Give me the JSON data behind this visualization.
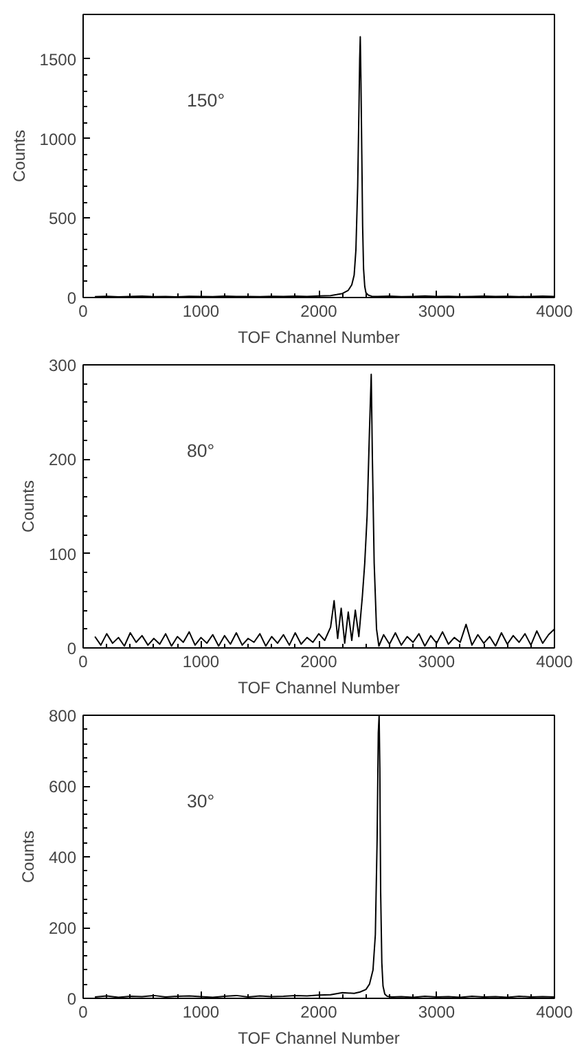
{
  "chart_data": [
    {
      "type": "line",
      "xlabel": "TOF Channel Number",
      "ylabel": "Counts",
      "annotations": [
        "150°"
      ],
      "xlim": [
        0,
        4000
      ],
      "xticks": [
        0,
        1000,
        2000,
        3000,
        4000
      ],
      "ylim": [
        0,
        1780
      ],
      "yticks": [
        0,
        500,
        1000,
        1500
      ],
      "line_style": "solid",
      "series": [
        {
          "color": "#000000",
          "x": [
            100,
            200,
            300,
            400,
            500,
            600,
            700,
            800,
            900,
            1000,
            1100,
            1200,
            1300,
            1400,
            1500,
            1600,
            1700,
            1800,
            1900,
            2000,
            2100,
            2150,
            2200,
            2250,
            2280,
            2300,
            2315,
            2330,
            2340,
            2347,
            2352,
            2358,
            2365,
            2372,
            2380,
            2390,
            2400,
            2420,
            2450,
            2500,
            2600,
            2700,
            2800,
            2900,
            3000,
            3100,
            3200,
            3300,
            3400,
            3500,
            3600,
            3700,
            3800,
            3900,
            4000
          ],
          "values": [
            5,
            8,
            4,
            6,
            9,
            5,
            7,
            4,
            8,
            6,
            5,
            9,
            6,
            7,
            5,
            8,
            6,
            9,
            7,
            10,
            12,
            18,
            25,
            45,
            80,
            140,
            300,
            700,
            1150,
            1500,
            1640,
            1350,
            900,
            450,
            180,
            70,
            30,
            15,
            8,
            6,
            9,
            5,
            7,
            10,
            6,
            8,
            5,
            7,
            9,
            6,
            8,
            5,
            7,
            9,
            6
          ]
        }
      ]
    },
    {
      "type": "line",
      "xlabel": "TOF Channel Number",
      "ylabel": "Counts",
      "annotations": [
        "80°"
      ],
      "xlim": [
        0,
        4000
      ],
      "xticks": [
        0,
        1000,
        2000,
        3000,
        4000
      ],
      "ylim": [
        0,
        300
      ],
      "yticks": [
        0,
        100,
        200,
        300
      ],
      "line_style": "solid",
      "series": [
        {
          "color": "#000000",
          "x": [
            100,
            150,
            200,
            250,
            300,
            350,
            400,
            450,
            500,
            550,
            600,
            650,
            700,
            750,
            800,
            850,
            900,
            950,
            1000,
            1050,
            1100,
            1150,
            1200,
            1250,
            1300,
            1350,
            1400,
            1450,
            1500,
            1550,
            1600,
            1650,
            1700,
            1750,
            1800,
            1850,
            1900,
            1950,
            2000,
            2050,
            2100,
            2130,
            2160,
            2190,
            2220,
            2250,
            2280,
            2310,
            2340,
            2370,
            2390,
            2410,
            2430,
            2445,
            2455,
            2470,
            2490,
            2510,
            2550,
            2600,
            2650,
            2700,
            2750,
            2800,
            2850,
            2900,
            2950,
            3000,
            3050,
            3100,
            3150,
            3200,
            3250,
            3300,
            3350,
            3400,
            3450,
            3500,
            3550,
            3600,
            3650,
            3700,
            3750,
            3800,
            3850,
            3900,
            3950,
            4000
          ],
          "values": [
            12,
            3,
            15,
            5,
            11,
            2,
            16,
            6,
            13,
            3,
            10,
            4,
            15,
            2,
            12,
            6,
            17,
            3,
            11,
            5,
            14,
            2,
            13,
            4,
            16,
            3,
            10,
            6,
            15,
            2,
            12,
            5,
            14,
            3,
            16,
            4,
            11,
            6,
            15,
            8,
            22,
            50,
            10,
            42,
            5,
            38,
            8,
            40,
            12,
            55,
            90,
            140,
            230,
            290,
            200,
            90,
            20,
            2,
            14,
            4,
            16,
            3,
            12,
            6,
            15,
            2,
            13,
            5,
            17,
            4,
            11,
            6,
            25,
            3,
            14,
            5,
            12,
            2,
            16,
            4,
            13,
            6,
            15,
            3,
            18,
            5,
            14,
            20
          ]
        }
      ]
    },
    {
      "type": "line",
      "xlabel": "TOF Channel Number",
      "ylabel": "Counts",
      "annotations": [
        "30°"
      ],
      "xlim": [
        0,
        4000
      ],
      "xticks": [
        0,
        1000,
        2000,
        3000,
        4000
      ],
      "ylim": [
        0,
        800
      ],
      "yticks": [
        0,
        200,
        400,
        600,
        800
      ],
      "line_style": "solid",
      "series": [
        {
          "color": "#000000",
          "x": [
            100,
            200,
            300,
            400,
            500,
            600,
            700,
            800,
            900,
            1000,
            1100,
            1200,
            1300,
            1400,
            1500,
            1600,
            1700,
            1800,
            1900,
            2000,
            2100,
            2200,
            2300,
            2350,
            2400,
            2430,
            2460,
            2480,
            2495,
            2505,
            2512,
            2518,
            2525,
            2535,
            2545,
            2560,
            2580,
            2620,
            2700,
            2800,
            2900,
            3000,
            3100,
            3200,
            3300,
            3400,
            3500,
            3600,
            3700,
            3800,
            3900,
            4000
          ],
          "values": [
            4,
            7,
            3,
            6,
            5,
            8,
            4,
            6,
            7,
            5,
            3,
            6,
            8,
            4,
            7,
            5,
            6,
            8,
            7,
            9,
            10,
            16,
            14,
            18,
            25,
            40,
            80,
            180,
            450,
            750,
            800,
            650,
            300,
            100,
            35,
            12,
            6,
            4,
            5,
            3,
            6,
            4,
            5,
            3,
            6,
            4,
            5,
            3,
            6,
            4,
            5,
            4
          ]
        }
      ]
    }
  ]
}
